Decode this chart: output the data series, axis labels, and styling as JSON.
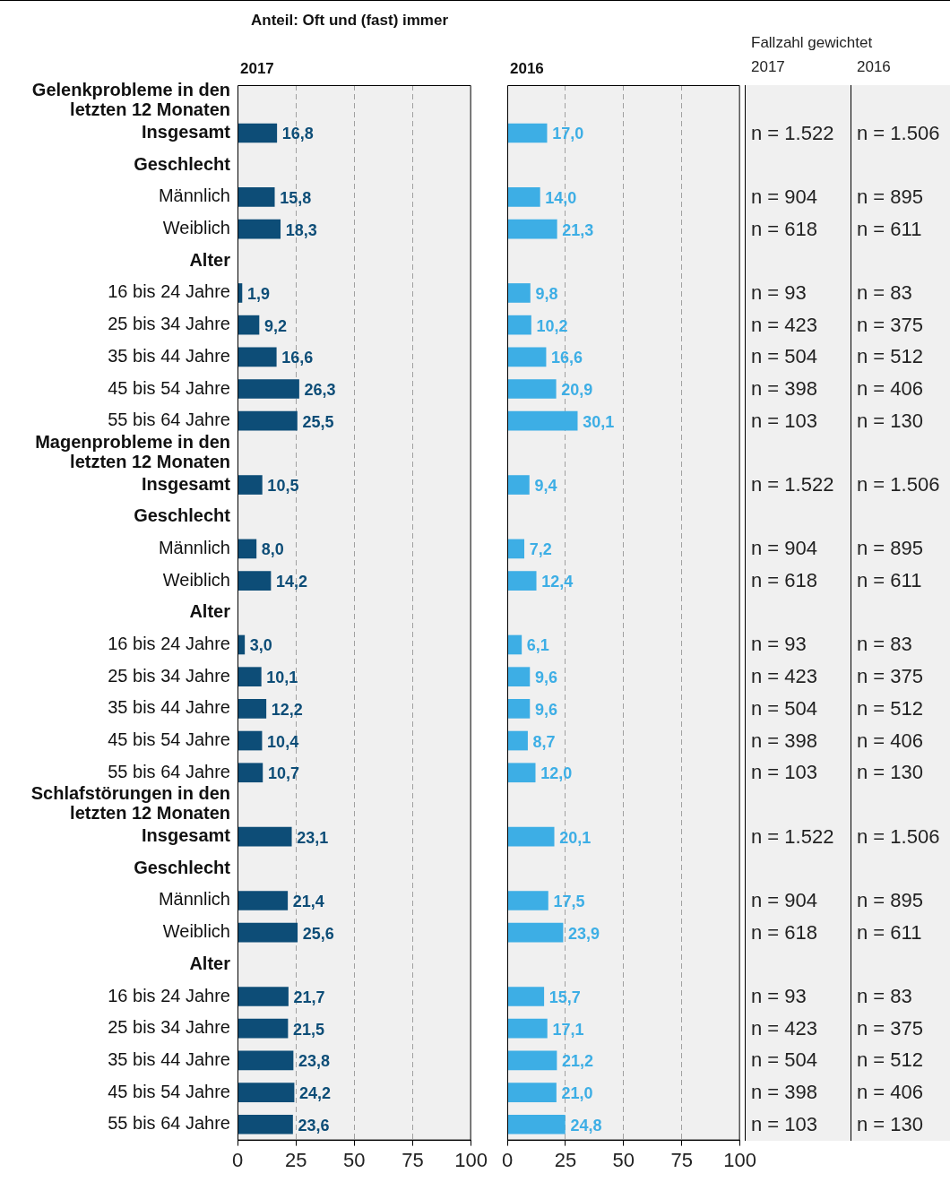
{
  "chart_data": [
    {
      "type": "bar",
      "orientation": "horizontal",
      "subtitle": "Anteil: Oft und (fast) immer",
      "title": "2017",
      "color": "#0d4d77",
      "xlim": [
        0,
        100
      ],
      "xticks": [
        0,
        25,
        50,
        75,
        100
      ],
      "grid": "x",
      "categories": [
        "Gelenkprobleme in den letzten 12 Monaten",
        "Insgesamt",
        "Geschlecht",
        "Männlich",
        "Weiblich",
        "Alter",
        "16 bis 24 Jahre",
        "25 bis 34 Jahre",
        "35 bis 44 Jahre",
        "45 bis 54 Jahre",
        "55 bis 64 Jahre",
        "Magenprobleme in den letzten 12 Monaten",
        "Insgesamt",
        "Geschlecht",
        "Männlich",
        "Weiblich",
        "Alter",
        "16 bis 24 Jahre",
        "25 bis 34 Jahre",
        "35 bis 44 Jahre",
        "45 bis 54 Jahre",
        "55 bis 64 Jahre",
        "Schlafstörungen in den letzten 12 Monaten",
        "Insgesamt",
        "Geschlecht",
        "Männlich",
        "Weiblich",
        "Alter",
        "16 bis 24 Jahre",
        "25 bis 34 Jahre",
        "35 bis 44 Jahre",
        "45 bis 54 Jahre",
        "55 bis 64 Jahre"
      ],
      "values": [
        null,
        16.8,
        null,
        15.8,
        18.3,
        null,
        1.9,
        9.2,
        16.6,
        26.3,
        25.5,
        null,
        10.5,
        null,
        8.0,
        14.2,
        null,
        3.0,
        10.1,
        12.2,
        10.4,
        10.7,
        null,
        23.1,
        null,
        21.4,
        25.6,
        null,
        21.7,
        21.5,
        23.8,
        24.2,
        23.6
      ],
      "value_labels": [
        null,
        "16,8",
        null,
        "15,8",
        "18,3",
        null,
        "1,9",
        "9,2",
        "16,6",
        "26,3",
        "25,5",
        null,
        "10,5",
        null,
        "8,0",
        "14,2",
        null,
        "3,0",
        "10,1",
        "12,2",
        "10,4",
        "10,7",
        null,
        "23,1",
        null,
        "21,4",
        "25,6",
        null,
        "21,7",
        "21,5",
        "23,8",
        "24,2",
        "23,6"
      ]
    },
    {
      "type": "bar",
      "orientation": "horizontal",
      "title": "2016",
      "color": "#3daee5",
      "xlim": [
        0,
        100
      ],
      "xticks": [
        0,
        25,
        50,
        75,
        100
      ],
      "grid": "x",
      "tick_labels": "x",
      "values": [
        null,
        17.0,
        null,
        14.0,
        21.3,
        null,
        9.8,
        10.2,
        16.6,
        20.9,
        30.1,
        null,
        9.4,
        null,
        7.2,
        12.4,
        null,
        6.1,
        9.6,
        9.6,
        8.7,
        12.0,
        null,
        20.1,
        null,
        17.5,
        23.9,
        null,
        15.7,
        17.1,
        21.2,
        21.0,
        24.8
      ],
      "value_labels": [
        null,
        "17,0",
        null,
        "14,0",
        "21,3",
        null,
        "9,8",
        "10,2",
        "16,6",
        "20,9",
        "30,1",
        null,
        "9,4",
        null,
        "7,2",
        "12,4",
        null,
        "6,1",
        "9,6",
        "9,6",
        "8,7",
        "12,0",
        null,
        "20,1",
        null,
        "17,5",
        "23,9",
        null,
        "15,7",
        "17,1",
        "21,2",
        "21,0",
        "24,8"
      ]
    },
    {
      "type": "other",
      "title": "Fallzahl gewichtet",
      "annotations": [
        "2017",
        "2016",
        "n = 1.522",
        "n = 1.506",
        "n = 904",
        "n = 895",
        "n = 618",
        "n = 611",
        "n = 93",
        "n = 83",
        "n = 423",
        "n = 375",
        "n = 504",
        "n = 512",
        "n = 398",
        "n = 406",
        "n = 103",
        "n = 130",
        "n = 1.522",
        "n = 1.506",
        "n = 904",
        "n = 895",
        "n = 618",
        "n = 611",
        "n = 93",
        "n = 83",
        "n = 423",
        "n = 375",
        "n = 504",
        "n = 512",
        "n = 398",
        "n = 406",
        "n = 103",
        "n = 130",
        "n = 1.522",
        "n = 1.506",
        "n = 904",
        "n = 895",
        "n = 618",
        "n = 611",
        "n = 93",
        "n = 83",
        "n = 423",
        "n = 375",
        "n = 504",
        "n = 512",
        "n = 398",
        "n = 406",
        "n = 103",
        "n = 130"
      ]
    }
  ]
}
